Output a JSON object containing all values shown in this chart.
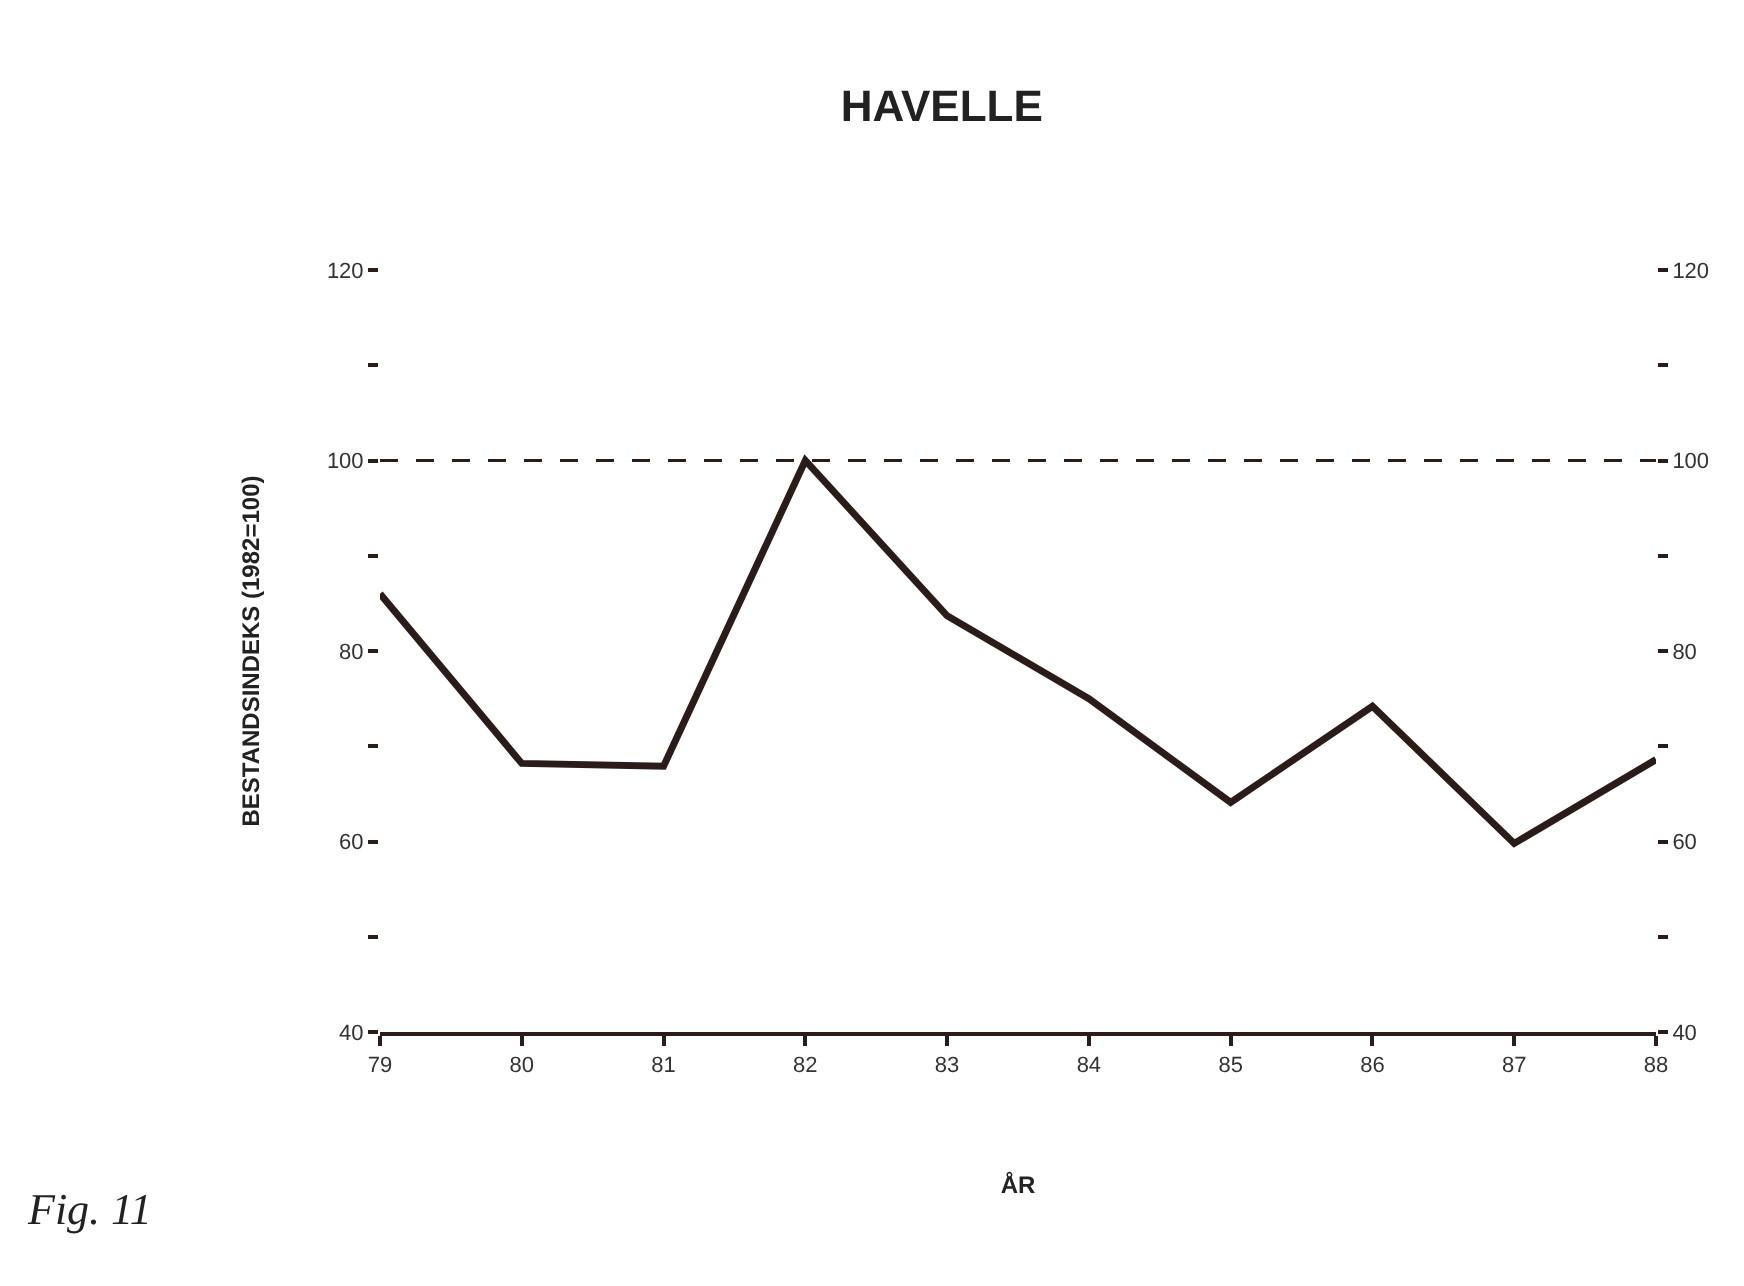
{
  "chart_data": {
    "type": "line",
    "title": "HAVELLE",
    "xlabel": "ÅR",
    "ylabel": "BESTANDSINDEKS (1982=100)",
    "x": [
      79,
      80,
      81,
      82,
      83,
      84,
      85,
      86,
      87,
      88
    ],
    "series": [
      {
        "color": "#2a1c18",
        "values": [
          86,
          68.2,
          67.9,
          100,
          83.7,
          75,
          64.1,
          74.2,
          59.8,
          68.6
        ]
      }
    ],
    "xlim": [
      79,
      88
    ],
    "xticks": [
      79,
      80,
      81,
      82,
      83,
      84,
      85,
      86,
      87,
      88
    ],
    "ylim": [
      40,
      120
    ],
    "yticks": [
      40,
      {
        "value": 50,
        "label": null
      },
      60,
      {
        "value": 70,
        "label": null
      },
      80,
      {
        "value": 90,
        "label": null
      },
      100,
      {
        "value": 110,
        "label": null
      },
      120
    ],
    "y2lim": [
      40,
      120
    ],
    "y2ticks": [
      40,
      {
        "value": 50,
        "label": null
      },
      60,
      {
        "value": 70,
        "label": null
      },
      80,
      {
        "value": 90,
        "label": null
      },
      100,
      {
        "value": 110,
        "label": null
      },
      120
    ],
    "ref_lines": [
      {
        "axis": "y2",
        "value": 100,
        "label": null,
        "color": "#2a1c18",
        "line_style": "dashed"
      }
    ],
    "annotations": [
      "Fig. 11"
    ],
    "legend": false,
    "marker": "none",
    "line_style": "solid"
  }
}
